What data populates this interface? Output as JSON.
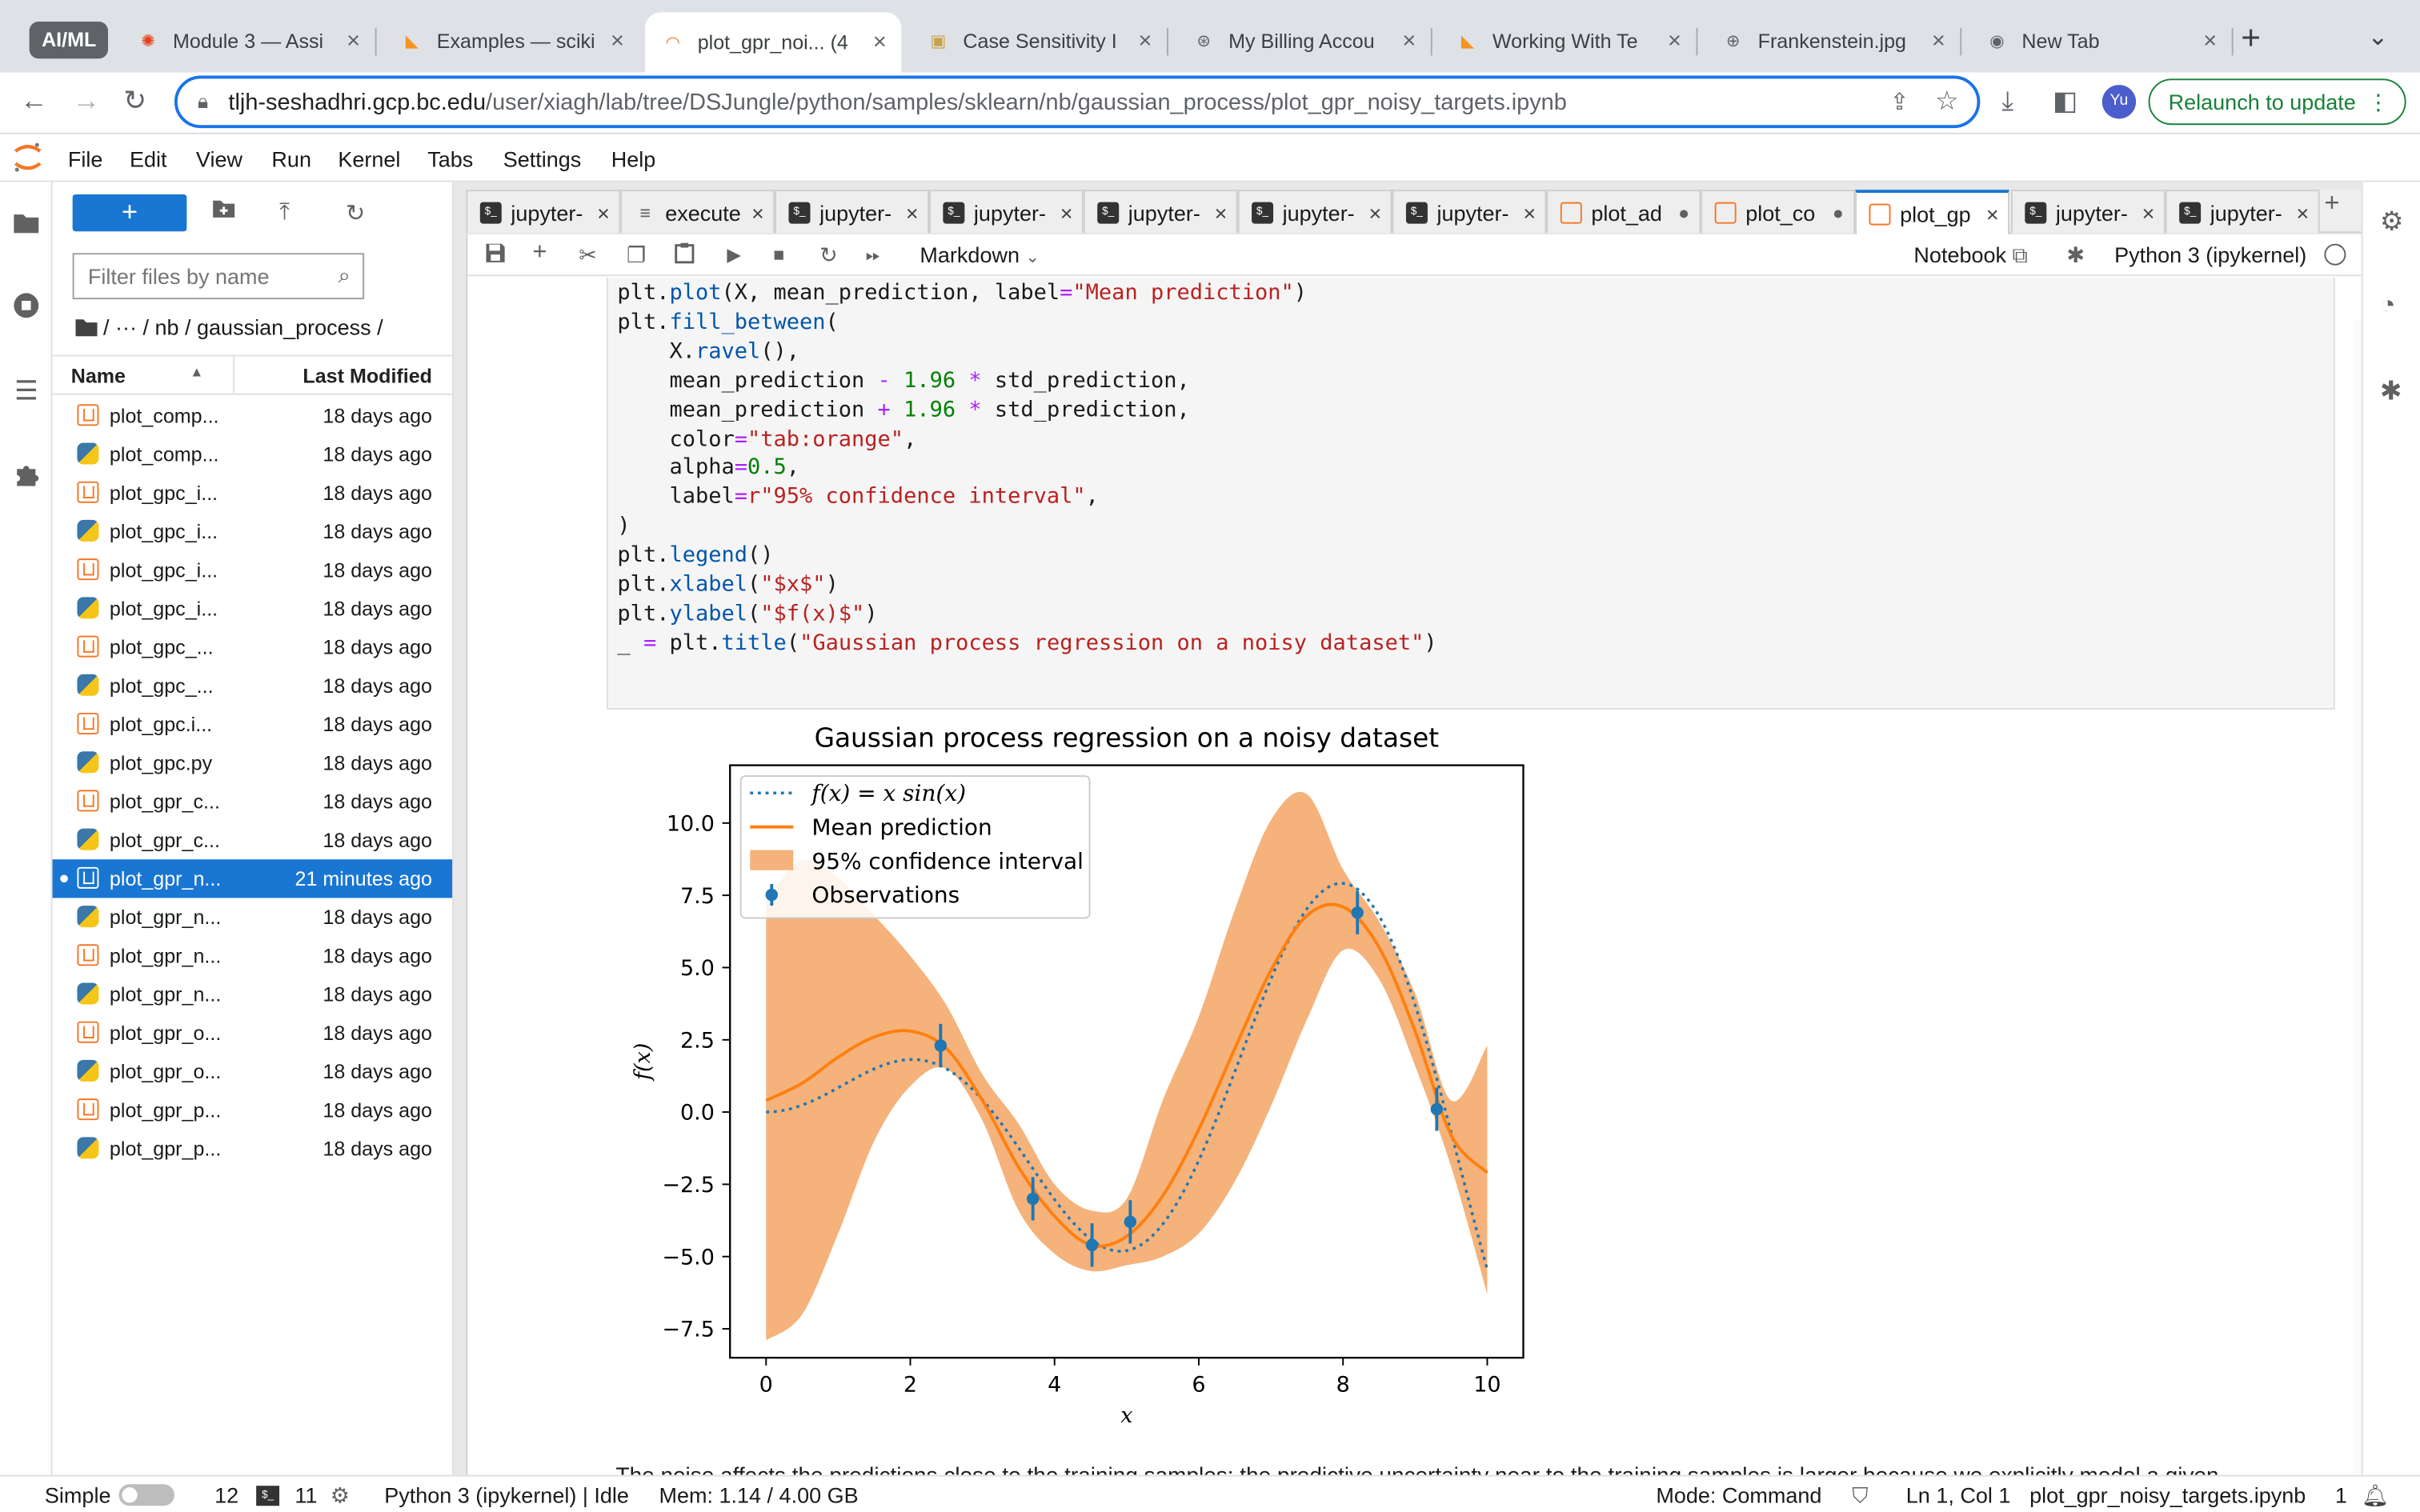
{
  "browser": {
    "profile_label": "AI/ML",
    "tabs": [
      {
        "title": "Module 3 — Assi",
        "icon": "canvas-icon",
        "active": false
      },
      {
        "title": "Examples — sciki",
        "icon": "sklearn-icon",
        "active": false
      },
      {
        "title": "plot_gpr_noi... (4",
        "icon": "jupyter-icon",
        "active": true
      },
      {
        "title": "Case Sensitivity I",
        "icon": "package-icon",
        "active": false
      },
      {
        "title": "My Billing Accou",
        "icon": "github-icon",
        "active": false
      },
      {
        "title": "Working With Te",
        "icon": "sklearn-icon",
        "active": false
      },
      {
        "title": "Frankenstein.jpg",
        "icon": "globe-icon",
        "active": false
      },
      {
        "title": "New Tab",
        "icon": "chrome-icon",
        "active": false
      }
    ],
    "url_host": "tljh-seshadhri.gcp.bc.edu",
    "url_path": "/user/xiagh/lab/tree/DSJungle/python/samples/sklearn/nb/gaussian_process/plot_gpr_noisy_targets.ipynb",
    "avatar_label": "Yu",
    "relaunch_label": "Relaunch to update"
  },
  "menubar": {
    "items": [
      "File",
      "Edit",
      "View",
      "Run",
      "Kernel",
      "Tabs",
      "Settings",
      "Help"
    ]
  },
  "filebrowser": {
    "filter_placeholder": "Filter files by name",
    "breadcrumb": "/   ···   / nb / gaussian_process /",
    "col_name": "Name",
    "col_modified": "Last Modified",
    "files": [
      {
        "name": "plot_comp...",
        "type": "notebook",
        "modified": "18 days ago"
      },
      {
        "name": "plot_comp...",
        "type": "python",
        "modified": "18 days ago"
      },
      {
        "name": "plot_gpc_i...",
        "type": "notebook",
        "modified": "18 days ago"
      },
      {
        "name": "plot_gpc_i...",
        "type": "python",
        "modified": "18 days ago"
      },
      {
        "name": "plot_gpc_i...",
        "type": "notebook",
        "modified": "18 days ago"
      },
      {
        "name": "plot_gpc_i...",
        "type": "python",
        "modified": "18 days ago"
      },
      {
        "name": "plot_gpc_...",
        "type": "notebook",
        "modified": "18 days ago"
      },
      {
        "name": "plot_gpc_...",
        "type": "python",
        "modified": "18 days ago"
      },
      {
        "name": "plot_gpc.i...",
        "type": "notebook",
        "modified": "18 days ago"
      },
      {
        "name": "plot_gpc.py",
        "type": "python",
        "modified": "18 days ago"
      },
      {
        "name": "plot_gpr_c...",
        "type": "notebook",
        "modified": "18 days ago"
      },
      {
        "name": "plot_gpr_c...",
        "type": "python",
        "modified": "18 days ago"
      },
      {
        "name": "plot_gpr_n...",
        "type": "notebook",
        "modified": "21 minutes ago",
        "selected": true
      },
      {
        "name": "plot_gpr_n...",
        "type": "python",
        "modified": "18 days ago"
      },
      {
        "name": "plot_gpr_n...",
        "type": "notebook",
        "modified": "18 days ago"
      },
      {
        "name": "plot_gpr_n...",
        "type": "python",
        "modified": "18 days ago"
      },
      {
        "name": "plot_gpr_o...",
        "type": "notebook",
        "modified": "18 days ago"
      },
      {
        "name": "plot_gpr_o...",
        "type": "python",
        "modified": "18 days ago"
      },
      {
        "name": "plot_gpr_p...",
        "type": "notebook",
        "modified": "18 days ago"
      },
      {
        "name": "plot_gpr_p...",
        "type": "python",
        "modified": "18 days ago"
      }
    ]
  },
  "doc_tabs": [
    {
      "label": "jupyter-",
      "kind": "terminal",
      "close": "×"
    },
    {
      "label": "execute",
      "kind": "text",
      "close": "×"
    },
    {
      "label": "jupyter-",
      "kind": "terminal",
      "close": "×"
    },
    {
      "label": "jupyter-",
      "kind": "terminal",
      "close": "×"
    },
    {
      "label": "jupyter-",
      "kind": "terminal",
      "close": "×"
    },
    {
      "label": "jupyter-",
      "kind": "terminal",
      "close": "×"
    },
    {
      "label": "jupyter-",
      "kind": "terminal",
      "close": "×"
    },
    {
      "label": "plot_ad",
      "kind": "notebook",
      "close": "●"
    },
    {
      "label": "plot_co",
      "kind": "notebook",
      "close": "●"
    },
    {
      "label": "plot_gp",
      "kind": "notebook",
      "close": "×",
      "active": true
    },
    {
      "label": "jupyter-",
      "kind": "terminal",
      "close": "×"
    },
    {
      "label": "jupyter-",
      "kind": "terminal",
      "close": "×"
    }
  ],
  "notebook_toolbar": {
    "cell_type": "Markdown",
    "notebook_label": "Notebook",
    "kernel_label": "Python 3 (ipykernel)"
  },
  "code_lines": [
    "plt.plot(X, mean_prediction, label=\"Mean prediction\")",
    "plt.fill_between(",
    "    X.ravel(),",
    "    mean_prediction - 1.96 * std_prediction,",
    "    mean_prediction + 1.96 * std_prediction,",
    "    color=\"tab:orange\",",
    "    alpha=0.5,",
    "    label=r\"95% confidence interval\",",
    ")",
    "plt.legend()",
    "plt.xlabel(\"$x$\")",
    "plt.ylabel(\"$f(x)$\")",
    "_ = plt.title(\"Gaussian process regression on a noisy dataset\")"
  ],
  "prose_text": "The noise affects the predictions close to the training samples: the predictive uncertainty near to the training samples is larger because we explicitly model a given",
  "chart_data": {
    "type": "line",
    "title": "Gaussian process regression on a noisy dataset",
    "xlabel": "x",
    "ylabel": "f(x)",
    "xlim": [
      -0.5,
      10.5
    ],
    "ylim": [
      -8.5,
      12.0
    ],
    "x_ticks": [
      "0",
      "2",
      "4",
      "6",
      "8",
      "10"
    ],
    "y_ticks": [
      "−7.5",
      "−5.0",
      "−2.5",
      "0.0",
      "2.5",
      "5.0",
      "7.5",
      "10.0"
    ],
    "legend_position": "top-left",
    "legend": [
      "f(x) = x sin(x)",
      "Mean prediction",
      "95% confidence interval",
      "Observations"
    ],
    "colors": {
      "true_function": "#1f77b4",
      "mean": "#ff7f0e",
      "band": "#f5b27a",
      "observations": "#1f77b4"
    },
    "true_function": {
      "name": "f(x) = x sin(x)",
      "expression": "x*sin(x)",
      "x_range": [
        0,
        10
      ]
    },
    "mean_prediction": {
      "name": "Mean prediction",
      "x": [
        0,
        0.5,
        1,
        1.5,
        2,
        2.5,
        3,
        3.5,
        4,
        4.5,
        5,
        5.5,
        6,
        6.5,
        7,
        7.5,
        8,
        8.5,
        9,
        9.5,
        10
      ],
      "y": [
        0.4,
        1.0,
        1.9,
        2.6,
        2.8,
        2.2,
        0.4,
        -1.9,
        -3.6,
        -4.6,
        -4.3,
        -2.9,
        -0.6,
        2.2,
        4.9,
        6.8,
        7.1,
        5.7,
        2.8,
        -0.8,
        -2.1
      ]
    },
    "confidence_interval": {
      "name": "95% confidence interval",
      "x": [
        0,
        0.5,
        1,
        1.5,
        2,
        2.5,
        3,
        3.5,
        4,
        4.5,
        5,
        5.5,
        6,
        6.5,
        7,
        7.5,
        8,
        8.5,
        9,
        9.5,
        10
      ],
      "lower": [
        -7.9,
        -7.0,
        -4.2,
        -1.0,
        0.9,
        1.5,
        -0.3,
        -3.4,
        -4.9,
        -5.5,
        -5.3,
        -5.0,
        -4.2,
        -2.4,
        0.2,
        3.2,
        5.6,
        4.6,
        1.6,
        -1.9,
        -6.3
      ],
      "upper": [
        7.3,
        8.7,
        8.1,
        6.8,
        5.4,
        3.7,
        1.3,
        -0.4,
        -2.5,
        -3.4,
        -3.0,
        0.4,
        3.3,
        7.0,
        10.1,
        11.0,
        8.4,
        6.6,
        4.1,
        0.4,
        2.3
      ]
    },
    "observations": {
      "name": "Observations",
      "x": [
        2.42,
        3.7,
        4.52,
        5.05,
        8.2,
        9.3
      ],
      "y": [
        2.3,
        -3.0,
        -4.6,
        -3.8,
        6.9,
        0.1
      ],
      "error": 0.75
    }
  },
  "statusbar": {
    "mode_simple": "Simple",
    "terminals_count": "12",
    "kernels_count": "11",
    "kernel_status": "Python 3 (ipykernel) | Idle",
    "memory": "Mem: 1.14 / 4.00 GB",
    "mode": "Mode: Command",
    "cursor": "Ln 1, Col 1",
    "filename": "plot_gpr_noisy_targets.ipynb",
    "notifications": "1"
  }
}
